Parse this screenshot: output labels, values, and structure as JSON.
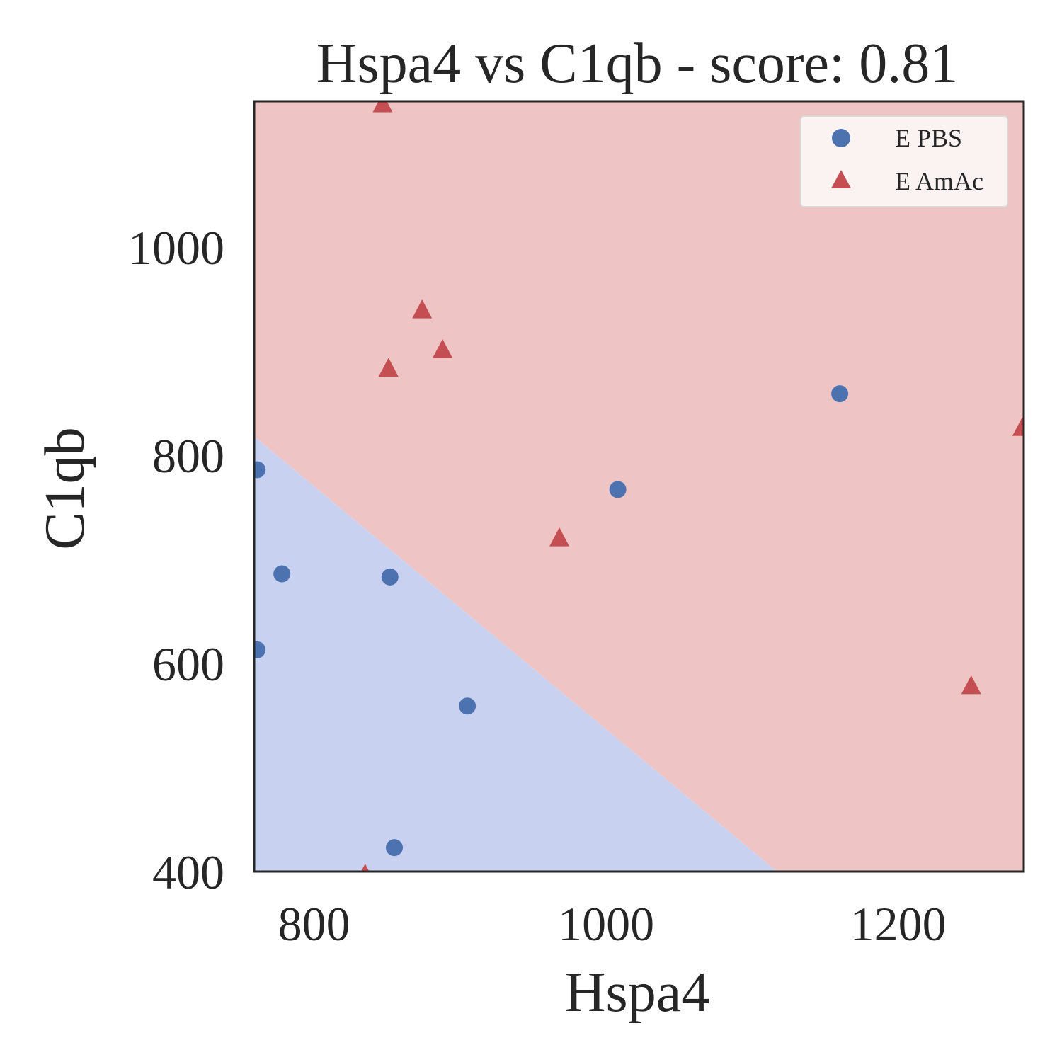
{
  "chart_data": {
    "type": "scatter",
    "title": "Hspa4 vs C1qb - score: 0.81",
    "xlabel": "Hspa4",
    "ylabel": "C1qb",
    "xlim": [
      759,
      1286
    ],
    "ylim": [
      400,
      1140
    ],
    "xticks": [
      800,
      1000,
      1200
    ],
    "yticks": [
      400,
      600,
      800,
      1000
    ],
    "grid": false,
    "legend_position": "top-right",
    "decision_boundary": {
      "points": [
        [
          759,
          818
        ],
        [
          1117,
          400
        ]
      ],
      "below_class": "E PBS",
      "above_class": "E AmAc",
      "colors": {
        "E PBS": "#c8d1f0",
        "E AmAc": "#eec4c4"
      }
    },
    "series": [
      {
        "name": "E PBS",
        "marker": "circle",
        "color": "#4c72b0",
        "points": [
          [
            761,
            786
          ],
          [
            761,
            613
          ],
          [
            778,
            686
          ],
          [
            852,
            683
          ],
          [
            855,
            423
          ],
          [
            905,
            559
          ],
          [
            1008,
            767
          ],
          [
            1160,
            859
          ]
        ]
      },
      {
        "name": "E AmAc",
        "marker": "triangle",
        "color": "#c44e52",
        "points": [
          [
            847,
            1138
          ],
          [
            851,
            884
          ],
          [
            874,
            940
          ],
          [
            888,
            902
          ],
          [
            968,
            721
          ],
          [
            835,
            398
          ],
          [
            1250,
            579
          ],
          [
            1285,
            827
          ]
        ]
      }
    ]
  }
}
